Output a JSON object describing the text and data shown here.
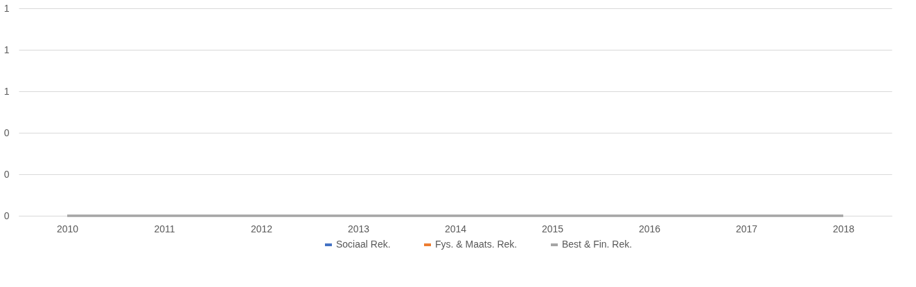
{
  "chart_data": {
    "type": "line",
    "categories": [
      "2010",
      "2011",
      "2012",
      "2013",
      "2014",
      "2015",
      "2016",
      "2017",
      "2018"
    ],
    "series": [
      {
        "name": "Sociaal Rek.",
        "color": "#4472c4",
        "values": [
          null,
          null,
          null,
          null,
          null,
          null,
          null,
          null,
          null
        ]
      },
      {
        "name": "Fys. & Maats. Rek.",
        "color": "#ed7d31",
        "values": [
          null,
          null,
          null,
          null,
          null,
          null,
          null,
          null,
          null
        ]
      },
      {
        "name": "Best & Fin. Rek.",
        "color": "#a5a5a5",
        "values": [
          0,
          0,
          0,
          0,
          0,
          0,
          0,
          0,
          0
        ]
      }
    ],
    "ylim": [
      0,
      1
    ],
    "yticks": [
      0,
      {
        "value": 0.2,
        "label": "0"
      },
      {
        "value": 0.4,
        "label": "0"
      },
      {
        "value": 0.6,
        "label": "1"
      },
      {
        "value": 0.8,
        "label": "1"
      },
      1
    ],
    "grid": "y",
    "legend": "bottom",
    "marker": "none",
    "line_style": "solid"
  }
}
